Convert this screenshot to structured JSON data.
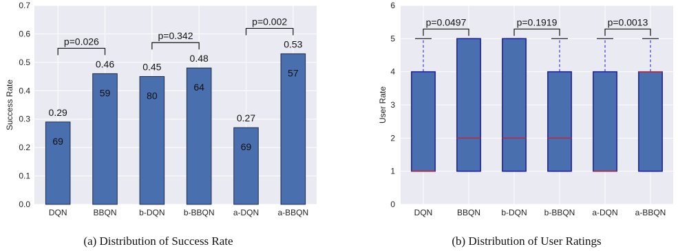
{
  "colors": {
    "bar": "#4a6fae",
    "bar_edge": "#1c2a44",
    "box": "#4a6fae",
    "box_edge": "#1a1aa8",
    "median": "#cc2030",
    "whisker": "#3a3adc",
    "plot_bg": "#eaeaf2",
    "grid": "#ffffff"
  },
  "chart_data": [
    {
      "type": "bar",
      "caption": "(a) Distribution of Success Rate",
      "ylabel": "Success Rate",
      "xlabel": "",
      "ylim": [
        0,
        0.7
      ],
      "yticks": [
        "0.0",
        "0.1",
        "0.2",
        "0.3",
        "0.4",
        "0.5",
        "0.6",
        "0.7"
      ],
      "grid": true,
      "categories": [
        "DQN",
        "BBQN",
        "b-DQN",
        "b-BBQN",
        "a-DQN",
        "a-BBQN"
      ],
      "values": [
        0.29,
        0.46,
        0.45,
        0.48,
        0.27,
        0.53
      ],
      "value_labels": [
        "0.29",
        "0.46",
        "0.45",
        "0.48",
        "0.27",
        "0.53"
      ],
      "inside_labels": [
        "69",
        "59",
        "80",
        "64",
        "69",
        "57"
      ],
      "brackets": [
        {
          "from": 0,
          "to": 1,
          "label": "p=0.026"
        },
        {
          "from": 2,
          "to": 3,
          "label": "p=0.342"
        },
        {
          "from": 4,
          "to": 5,
          "label": "p=0.002"
        }
      ]
    },
    {
      "type": "box",
      "caption": "(b) Distribution of User Ratings",
      "ylabel": "User Rate",
      "xlabel": "",
      "ylim": [
        0,
        6
      ],
      "yticks": [
        "0",
        "1",
        "2",
        "3",
        "4",
        "5",
        "6"
      ],
      "grid": true,
      "categories": [
        "DQN",
        "BBQN",
        "b-DQN",
        "b-BBQN",
        "a-DQN",
        "a-BBQN"
      ],
      "boxes": [
        {
          "whislo": 1,
          "q1": 1,
          "med": 1,
          "q3": 4,
          "whishi": 5
        },
        {
          "whislo": 1,
          "q1": 1,
          "med": 2,
          "q3": 5,
          "whishi": 5
        },
        {
          "whislo": 1,
          "q1": 1,
          "med": 2,
          "q3": 5,
          "whishi": 5
        },
        {
          "whislo": 1,
          "q1": 1,
          "med": 2,
          "q3": 4,
          "whishi": 5
        },
        {
          "whislo": 1,
          "q1": 1,
          "med": 1,
          "q3": 4,
          "whishi": 5
        },
        {
          "whislo": 1,
          "q1": 1,
          "med": 4,
          "q3": 4,
          "whishi": 5
        }
      ],
      "brackets": [
        {
          "from": 0,
          "to": 1,
          "label": "p=0.0497"
        },
        {
          "from": 2,
          "to": 3,
          "label": "p=0.1919"
        },
        {
          "from": 4,
          "to": 5,
          "label": "p=0.0013"
        }
      ]
    }
  ]
}
